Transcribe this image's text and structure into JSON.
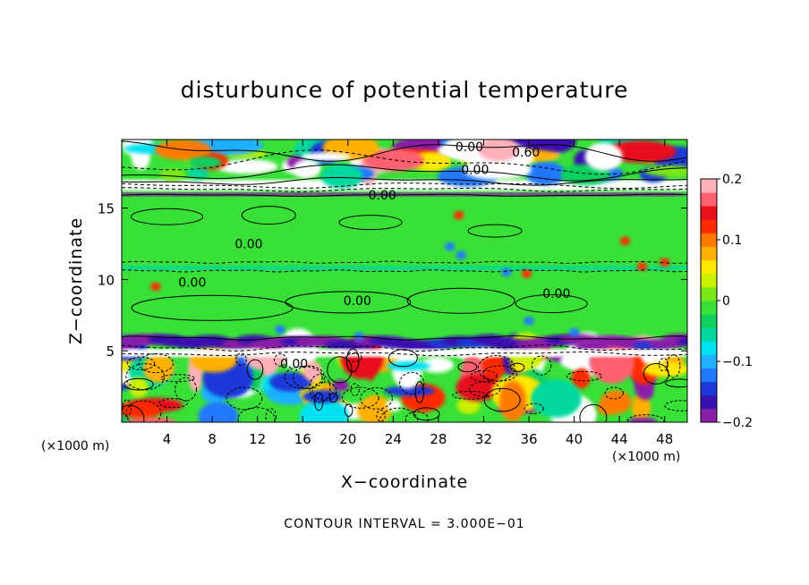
{
  "chart_data": {
    "type": "heatmap",
    "title": "disturbunce of potential temperature",
    "xlabel": "X−coordinate",
    "ylabel": "Z−coordinate",
    "x_unit": "(×1000 m)",
    "x_unit_right": "(×1000 m)",
    "xlim": [
      0,
      50
    ],
    "ylim": [
      0,
      19.8
    ],
    "x_ticks": [
      4,
      8,
      12,
      16,
      20,
      24,
      28,
      32,
      36,
      40,
      44,
      48
    ],
    "x_tick_labels": [
      "4",
      "8",
      "12",
      "16",
      "20",
      "24",
      "28",
      "32",
      "36",
      "40",
      "44",
      "48"
    ],
    "y_ticks": [
      5,
      10,
      15
    ],
    "y_tick_labels": [
      "5",
      "10",
      "15"
    ],
    "colorbar": {
      "range": [
        -0.2,
        0.2
      ],
      "ticks": [
        0.2,
        0.1,
        0,
        -0.1,
        -0.2
      ],
      "tick_labels": [
        "0.2",
        "0.1",
        "0",
        "−0.1",
        "−0.2"
      ],
      "colors": [
        "#8a1fa8",
        "#3a0fb0",
        "#1d38d8",
        "#2277ff",
        "#1fb0ff",
        "#00e0f0",
        "#00d8a0",
        "#10d060",
        "#38e038",
        "#7ce818",
        "#c8f000",
        "#ffe800",
        "#ffb000",
        "#ff7a00",
        "#ff2a00",
        "#e8101a",
        "#ff6070",
        "#ffb0b8"
      ]
    },
    "contour_labels": [
      {
        "text": "0.00",
        "x": 29.5,
        "y": 19.0
      },
      {
        "text": "0.60",
        "x": 34.5,
        "y": 18.6
      },
      {
        "text": "0.00",
        "x": 30.0,
        "y": 17.4
      },
      {
        "text": "0.00",
        "x": 21.8,
        "y": 15.6
      },
      {
        "text": "0.00",
        "x": 10.0,
        "y": 12.2
      },
      {
        "text": "0.00",
        "x": 5.0,
        "y": 9.5
      },
      {
        "text": "0.00",
        "x": 19.6,
        "y": 8.2
      },
      {
        "text": "0.00",
        "x": 37.2,
        "y": 8.7
      },
      {
        "text": "0.00",
        "x": 14.0,
        "y": 3.8
      }
    ],
    "contour_interval_label": "CONTOUR INTERVAL = 3.000E−01"
  }
}
